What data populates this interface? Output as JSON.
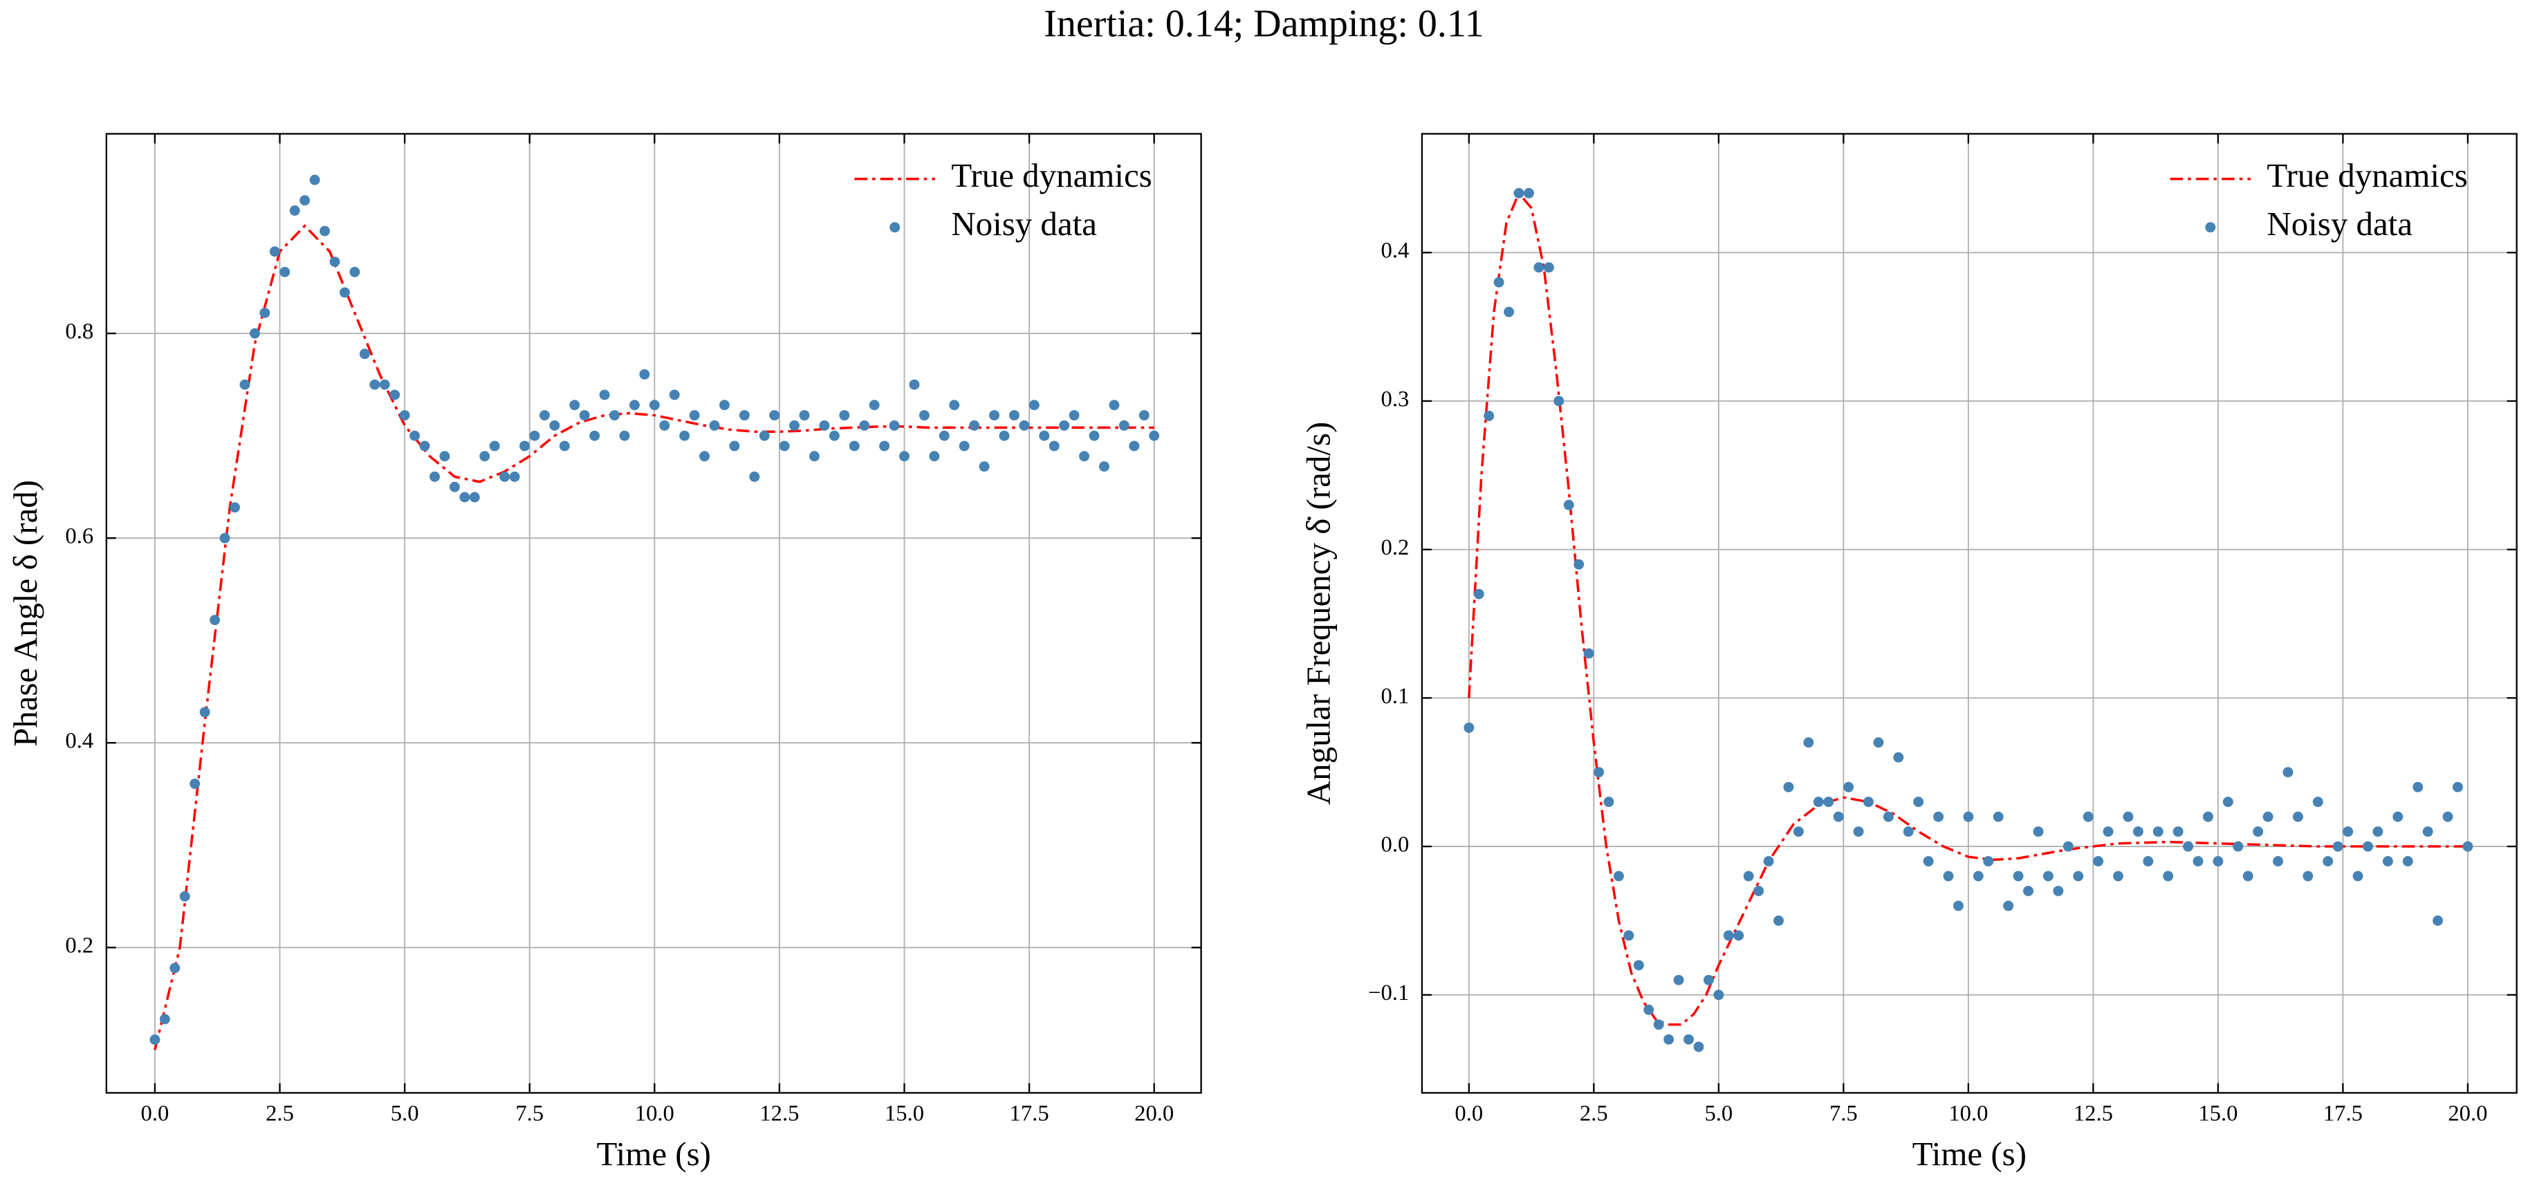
{
  "title": "Inertia: 0.14; Damping: 0.11",
  "chart_data": [
    {
      "type": "line",
      "xlabel": "Time (s)",
      "ylabel": "Phase Angle δ (rad)",
      "xlim": [
        -0.97,
        20.94
      ],
      "ylim": [
        0.058,
        0.995
      ],
      "xticks": [
        {
          "value": 0,
          "label": "0.0"
        },
        2.5,
        {
          "value": 5,
          "label": "5.0"
        },
        7.5,
        {
          "value": 10,
          "label": "10.0"
        },
        12.5,
        {
          "value": 15,
          "label": "15.0"
        },
        17.5,
        {
          "value": 20,
          "label": "20.0"
        }
      ],
      "yticks": [
        0.2,
        0.4,
        0.6,
        0.8
      ],
      "grid": true,
      "legend": "upper right",
      "series": [
        {
          "name": "True dynamics",
          "type": "line",
          "color": "#ff0000",
          "x": [
            0,
            0.5,
            1,
            1.5,
            2,
            2.5,
            3,
            3.5,
            4,
            4.5,
            5,
            5.5,
            6,
            6.5,
            7,
            7.5,
            8,
            8.5,
            9,
            9.5,
            10,
            10.5,
            11,
            11.5,
            12,
            12.5,
            13,
            13.5,
            14,
            14.5,
            15,
            15.5,
            16,
            16.5,
            17,
            17.5,
            18,
            18.5,
            19,
            19.5,
            20
          ],
          "values": [
            0.1,
            0.2,
            0.42,
            0.63,
            0.79,
            0.88,
            0.905,
            0.88,
            0.82,
            0.76,
            0.71,
            0.68,
            0.66,
            0.655,
            0.665,
            0.68,
            0.7,
            0.713,
            0.72,
            0.722,
            0.72,
            0.715,
            0.71,
            0.706,
            0.704,
            0.704,
            0.705,
            0.707,
            0.708,
            0.709,
            0.709,
            0.708,
            0.708,
            0.708,
            0.708,
            0.708,
            0.708,
            0.708,
            0.708,
            0.708,
            0.708
          ]
        },
        {
          "name": "Noisy data",
          "type": "scatter",
          "color": "#4682b4",
          "x": [
            0,
            0.2,
            0.4,
            0.6,
            0.8,
            1,
            1.2,
            1.4,
            1.6,
            1.8,
            2,
            2.2,
            2.4,
            2.6,
            2.8,
            3,
            3.2,
            3.4,
            3.6,
            3.8,
            4,
            4.2,
            4.4,
            4.6,
            4.8,
            5,
            5.2,
            5.4,
            5.6,
            5.8,
            6,
            6.2,
            6.4,
            6.6,
            6.8,
            7,
            7.2,
            7.4,
            7.6,
            7.8,
            8,
            8.2,
            8.4,
            8.6,
            8.8,
            9,
            9.2,
            9.4,
            9.6,
            9.8,
            10,
            10.2,
            10.4,
            10.6,
            10.8,
            11,
            11.2,
            11.4,
            11.6,
            11.8,
            12,
            12.2,
            12.4,
            12.6,
            12.8,
            13,
            13.2,
            13.4,
            13.6,
            13.8,
            14,
            14.2,
            14.4,
            14.6,
            14.8,
            15,
            15.2,
            15.4,
            15.6,
            15.8,
            16,
            16.2,
            16.4,
            16.6,
            16.8,
            17,
            17.2,
            17.4,
            17.6,
            17.8,
            18,
            18.2,
            18.4,
            18.6,
            18.8,
            19,
            19.2,
            19.4,
            19.6,
            19.8,
            20
          ],
          "values": [
            0.11,
            0.13,
            0.18,
            0.25,
            0.36,
            0.43,
            0.52,
            0.6,
            0.63,
            0.75,
            0.8,
            0.82,
            0.88,
            0.86,
            0.92,
            0.93,
            0.95,
            0.9,
            0.87,
            0.84,
            0.86,
            0.78,
            0.75,
            0.75,
            0.74,
            0.72,
            0.7,
            0.69,
            0.66,
            0.68,
            0.65,
            0.64,
            0.64,
            0.68,
            0.69,
            0.66,
            0.66,
            0.69,
            0.7,
            0.72,
            0.71,
            0.69,
            0.73,
            0.72,
            0.7,
            0.74,
            0.72,
            0.7,
            0.73,
            0.76,
            0.73,
            0.71,
            0.74,
            0.7,
            0.72,
            0.68,
            0.71,
            0.73,
            0.69,
            0.72,
            0.66,
            0.7,
            0.72,
            0.69,
            0.71,
            0.72,
            0.68,
            0.71,
            0.7,
            0.72,
            0.69,
            0.71,
            0.73,
            0.69,
            0.71,
            0.68,
            0.75,
            0.72,
            0.68,
            0.7,
            0.73,
            0.69,
            0.71,
            0.67,
            0.72,
            0.7,
            0.72,
            0.71,
            0.73,
            0.7,
            0.69,
            0.71,
            0.72,
            0.68,
            0.7,
            0.67,
            0.73,
            0.71,
            0.69,
            0.72,
            0.7
          ]
        }
      ]
    },
    {
      "type": "line",
      "xlabel": "Time (s)",
      "ylabel": "Angular Frequency δ̇ (rad/s)",
      "xlim": [
        -0.94,
        20.98
      ],
      "ylim": [
        -0.166,
        0.48
      ],
      "xticks": [
        {
          "value": 0,
          "label": "0.0"
        },
        2.5,
        {
          "value": 5,
          "label": "5.0"
        },
        7.5,
        {
          "value": 10,
          "label": "10.0"
        },
        12.5,
        {
          "value": 15,
          "label": "15.0"
        },
        17.5,
        {
          "value": 20,
          "label": "20.0"
        }
      ],
      "yticks": [
        {
          "value": -0.1,
          "label": "−0.1"
        },
        {
          "value": 0,
          "label": "0.0"
        },
        0.1,
        0.2,
        0.3,
        0.4
      ],
      "grid": true,
      "legend": "upper right",
      "series": [
        {
          "name": "True dynamics",
          "type": "line",
          "color": "#ff0000",
          "x": [
            0,
            0.25,
            0.5,
            0.75,
            1,
            1.25,
            1.5,
            1.75,
            2,
            2.25,
            2.5,
            2.75,
            3,
            3.25,
            3.5,
            3.75,
            4,
            4.25,
            4.5,
            4.75,
            5,
            5.5,
            6,
            6.5,
            7,
            7.5,
            8,
            8.5,
            9,
            9.5,
            10,
            10.5,
            11,
            11.5,
            12,
            13,
            14,
            15,
            16,
            17,
            18,
            19,
            20
          ],
          "values": [
            0.1,
            0.25,
            0.36,
            0.42,
            0.44,
            0.43,
            0.39,
            0.32,
            0.24,
            0.15,
            0.07,
            0,
            -0.05,
            -0.085,
            -0.105,
            -0.117,
            -0.12,
            -0.12,
            -0.113,
            -0.1,
            -0.08,
            -0.045,
            -0.01,
            0.015,
            0.028,
            0.033,
            0.03,
            0.022,
            0.01,
            0,
            -0.007,
            -0.009,
            -0.008,
            -0.005,
            -0.002,
            0.002,
            0.003,
            0.002,
            0.001,
            0,
            0,
            0,
            0
          ]
        },
        {
          "name": "Noisy data",
          "type": "scatter",
          "color": "#4682b4",
          "x": [
            0,
            0.2,
            0.4,
            0.6,
            0.8,
            1,
            1.2,
            1.4,
            1.6,
            1.8,
            2,
            2.2,
            2.4,
            2.6,
            2.8,
            3,
            3.2,
            3.4,
            3.6,
            3.8,
            4,
            4.2,
            4.4,
            4.6,
            4.8,
            5,
            5.2,
            5.4,
            5.6,
            5.8,
            6,
            6.2,
            6.4,
            6.6,
            6.8,
            7,
            7.2,
            7.4,
            7.6,
            7.8,
            8,
            8.2,
            8.4,
            8.6,
            8.8,
            9,
            9.2,
            9.4,
            9.6,
            9.8,
            10,
            10.2,
            10.4,
            10.6,
            10.8,
            11,
            11.2,
            11.4,
            11.6,
            11.8,
            12,
            12.2,
            12.4,
            12.6,
            12.8,
            13,
            13.2,
            13.4,
            13.6,
            13.8,
            14,
            14.2,
            14.4,
            14.6,
            14.8,
            15,
            15.2,
            15.4,
            15.6,
            15.8,
            16,
            16.2,
            16.4,
            16.6,
            16.8,
            17,
            17.2,
            17.4,
            17.6,
            17.8,
            18,
            18.2,
            18.4,
            18.6,
            18.8,
            19,
            19.2,
            19.4,
            19.6,
            19.8,
            20
          ],
          "values": [
            0.08,
            0.17,
            0.29,
            0.38,
            0.36,
            0.44,
            0.44,
            0.39,
            0.39,
            0.3,
            0.23,
            0.19,
            0.13,
            0.05,
            0.03,
            -0.02,
            -0.06,
            -0.08,
            -0.11,
            -0.12,
            -0.13,
            -0.09,
            -0.13,
            -0.135,
            -0.09,
            -0.1,
            -0.06,
            -0.06,
            -0.02,
            -0.03,
            -0.01,
            -0.05,
            0.04,
            0.01,
            0.07,
            0.03,
            0.03,
            0.02,
            0.04,
            0.01,
            0.03,
            0.07,
            0.02,
            0.06,
            0.01,
            0.03,
            -0.01,
            0.02,
            -0.02,
            -0.04,
            0.02,
            -0.02,
            -0.01,
            0.02,
            -0.04,
            -0.02,
            -0.03,
            0.01,
            -0.02,
            -0.03,
            0,
            -0.02,
            0.02,
            -0.01,
            0.01,
            -0.02,
            0.02,
            0.01,
            -0.01,
            0.01,
            -0.02,
            0.01,
            0,
            -0.01,
            0.02,
            -0.01,
            0.03,
            0,
            -0.02,
            0.01,
            0.02,
            -0.01,
            0.05,
            0.02,
            -0.02,
            0.03,
            -0.01,
            0,
            0.01,
            -0.02,
            0,
            0.01,
            -0.01,
            0.02,
            -0.01,
            0.04,
            0.01,
            -0.05,
            0.02,
            0.04,
            0
          ]
        }
      ]
    }
  ]
}
